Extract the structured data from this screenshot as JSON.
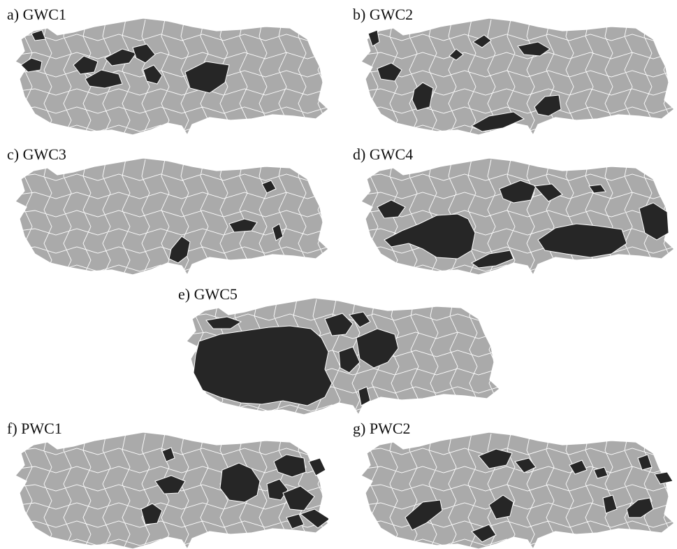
{
  "figure": {
    "colors": {
      "highlight": "#262626",
      "base": "#aaaaaa",
      "border": "#ffffff"
    },
    "panels": [
      {
        "label": "a) GWC1"
      },
      {
        "label": "b) GWC2"
      },
      {
        "label": "c) GWC3"
      },
      {
        "label": "d) GWC4"
      },
      {
        "label": "e) GWC5"
      },
      {
        "label": "f) PWC1"
      },
      {
        "label": "g) PWC2"
      }
    ]
  }
}
